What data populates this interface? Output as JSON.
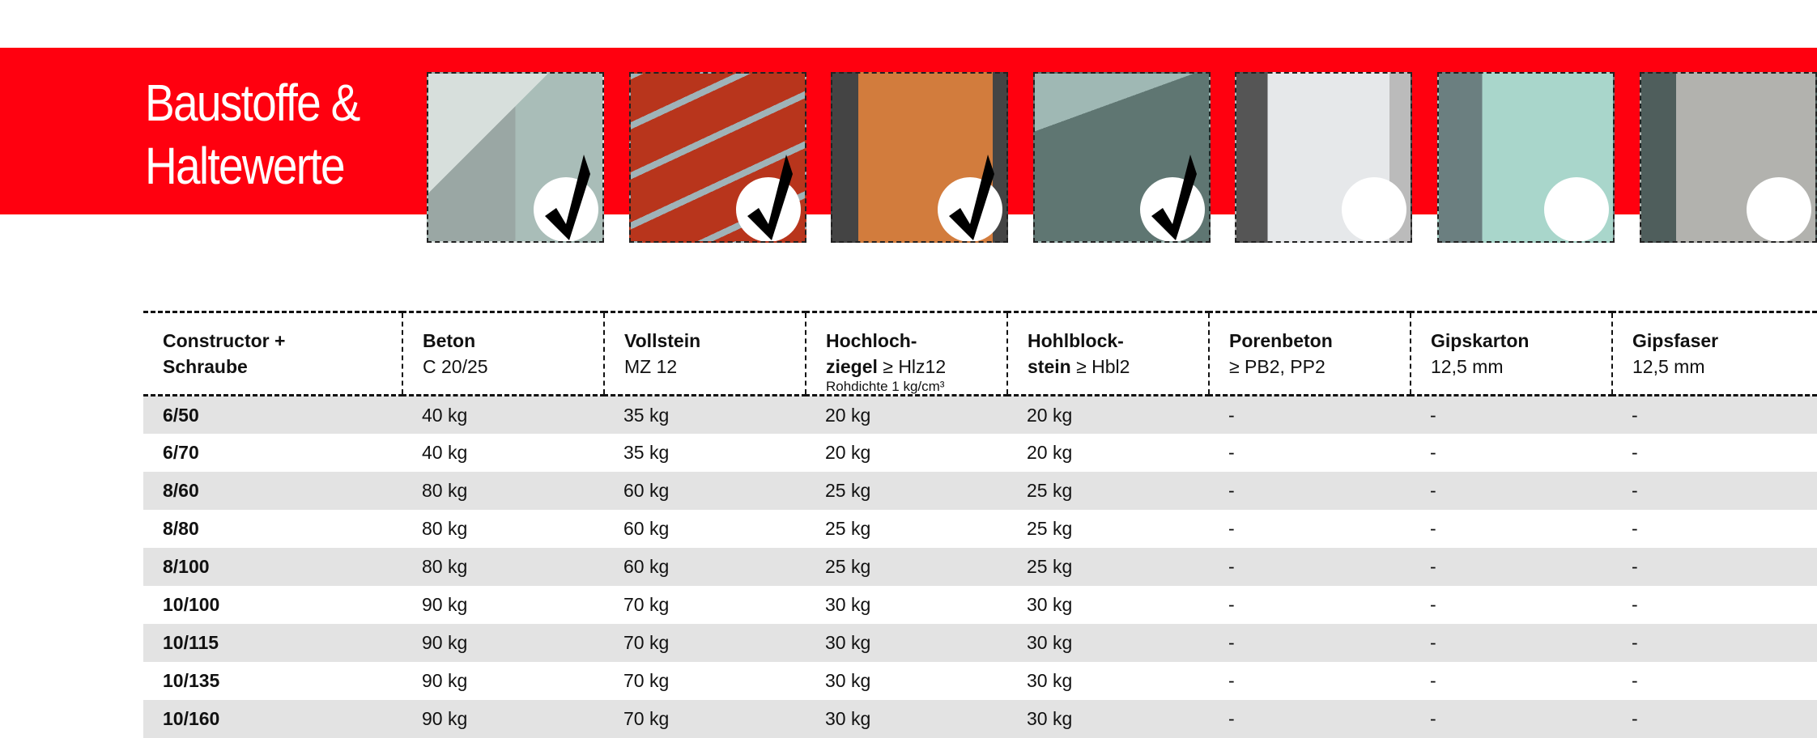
{
  "header": {
    "title_line1": "Baustoffe &",
    "title_line2": "Haltewerte",
    "accent_color": "#ff000f"
  },
  "materials": [
    {
      "name": "Beton",
      "checked": true
    },
    {
      "name": "Vollstein",
      "checked": true
    },
    {
      "name": "Hochlochziegel",
      "checked": true
    },
    {
      "name": "Hohlblockstein",
      "checked": true
    },
    {
      "name": "Porenbeton",
      "checked": false
    },
    {
      "name": "Gipskarton",
      "checked": false
    },
    {
      "name": "Gipsfaser",
      "checked": false
    }
  ],
  "table": {
    "headers": [
      {
        "bold": "Constructor +",
        "bold2": "Schraube"
      },
      {
        "bold": "Beton",
        "sub": "C 20/25"
      },
      {
        "bold": "Vollstein",
        "sub": "MZ 12"
      },
      {
        "bold": "Hochloch-",
        "bold2": "ziegel",
        "sub": " ≥ Hlz12",
        "small": "Rohdichte 1 kg/cm³"
      },
      {
        "bold": "Hohlblock-",
        "bold2": "stein",
        "sub": " ≥ Hbl2"
      },
      {
        "bold": "Porenbeton",
        "sub": "≥ PB2, PP2"
      },
      {
        "bold": "Gipskarton",
        "sub": "12,5 mm"
      },
      {
        "bold": "Gipsfaser",
        "sub": "12,5 mm"
      }
    ],
    "rows": [
      [
        "6/50",
        "40 kg",
        "35 kg",
        "20 kg",
        "20 kg",
        "-",
        "-",
        "-"
      ],
      [
        "6/70",
        "40 kg",
        "35 kg",
        "20 kg",
        "20 kg",
        "-",
        "-",
        "-"
      ],
      [
        "8/60",
        "80 kg",
        "60 kg",
        "25 kg",
        "25 kg",
        "-",
        "-",
        "-"
      ],
      [
        "8/80",
        "80 kg",
        "60 kg",
        "25 kg",
        "25 kg",
        "-",
        "-",
        "-"
      ],
      [
        "8/100",
        "80 kg",
        "60 kg",
        "25 kg",
        "25 kg",
        "-",
        "-",
        "-"
      ],
      [
        "10/100",
        "90 kg",
        "70 kg",
        "30 kg",
        "30 kg",
        "-",
        "-",
        "-"
      ],
      [
        "10/115",
        "90 kg",
        "70 kg",
        "30 kg",
        "30 kg",
        "-",
        "-",
        "-"
      ],
      [
        "10/135",
        "90 kg",
        "70 kg",
        "30 kg",
        "30 kg",
        "-",
        "-",
        "-"
      ],
      [
        "10/160",
        "90 kg",
        "70 kg",
        "30 kg",
        "30 kg",
        "-",
        "-",
        "-"
      ]
    ]
  }
}
